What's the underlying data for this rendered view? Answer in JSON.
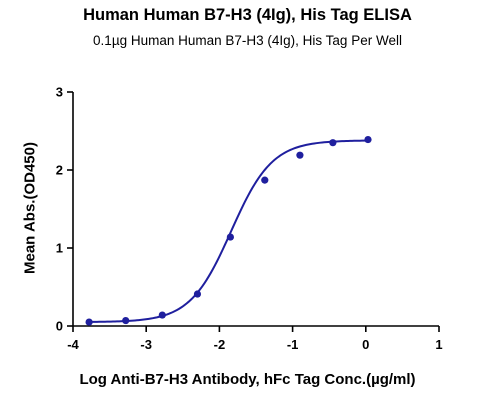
{
  "chart_data": {
    "type": "scatter",
    "title": "Human Human B7-H3 (4Ig), His Tag ELISA",
    "subtitle": "0.1µg Human Human B7-H3 (4Ig), His Tag Per Well",
    "xlabel": "Log Anti-B7-H3 Antibody, hFc Tag Conc.(µg/ml)",
    "ylabel": "Mean Abs.(OD450)",
    "xlim": [
      -4,
      1
    ],
    "ylim": [
      0,
      3
    ],
    "xticks": [
      "-4",
      "-3",
      "-2",
      "-1",
      "0",
      "1"
    ],
    "yticks": [
      "0",
      "1",
      "2",
      "3"
    ],
    "grid": false,
    "fit": "four-parameter logistic curve",
    "color": "#1f1f9e",
    "series": [
      {
        "x": [
          -3.78,
          -3.28,
          -2.78,
          -2.3,
          -1.85,
          -1.38,
          -0.9,
          -0.45,
          0.03
        ],
        "y": [
          0.05,
          0.07,
          0.14,
          0.41,
          1.14,
          1.87,
          2.19,
          2.35,
          2.39
        ]
      }
    ]
  }
}
